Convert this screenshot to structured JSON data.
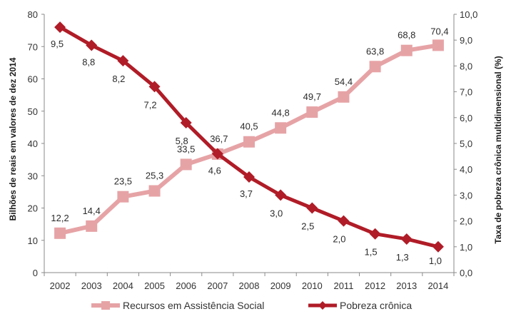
{
  "chart_data": {
    "type": "line",
    "x": [
      "2002",
      "2003",
      "2004",
      "2005",
      "2006",
      "2007",
      "2008",
      "2009",
      "2010",
      "2011",
      "2012",
      "2013",
      "2014"
    ],
    "ylabel_left": "Bilhões de reais em valores de dez 2014",
    "ylabel_right": "Taxa de pobreza crônica multidimensional (%)",
    "ylim_left": [
      0,
      80
    ],
    "ylim_right": [
      0.0,
      10.0
    ],
    "yticks_left": [
      "0",
      "10",
      "20",
      "30",
      "40",
      "50",
      "60",
      "70",
      "80"
    ],
    "yticks_right": [
      "0,0",
      "1,0",
      "2,0",
      "3,0",
      "4,0",
      "5,0",
      "6,0",
      "7,0",
      "8,0",
      "9,0",
      "10,0"
    ],
    "grid": false,
    "legend_position": "bottom",
    "series": [
      {
        "name": "Recursos em Assistência Social",
        "axis": "left",
        "marker": "square",
        "color": "#e6a3a6",
        "values": [
          12.2,
          14.4,
          23.5,
          25.3,
          33.5,
          36.7,
          40.5,
          44.8,
          49.7,
          54.4,
          63.8,
          68.8,
          70.4
        ],
        "labels": [
          "12,2",
          "14,4",
          "23,5",
          "25,3",
          "33,5",
          "36,7",
          "40,5",
          "44,8",
          "49,7",
          "54,4",
          "63,8",
          "68,8",
          "70,4"
        ]
      },
      {
        "name": "Pobreza crônica",
        "axis": "right",
        "marker": "diamond",
        "color": "#b01c27",
        "values": [
          9.5,
          8.8,
          8.2,
          7.2,
          5.8,
          4.6,
          3.7,
          3.0,
          2.5,
          2.0,
          1.5,
          1.3,
          1.0
        ],
        "labels": [
          "9,5",
          "8,8",
          "8,2",
          "7,2",
          "5,8",
          "4,6",
          "3,7",
          "3,0",
          "2,5",
          "2,0",
          "1,5",
          "1,3",
          "1,0"
        ]
      }
    ]
  }
}
